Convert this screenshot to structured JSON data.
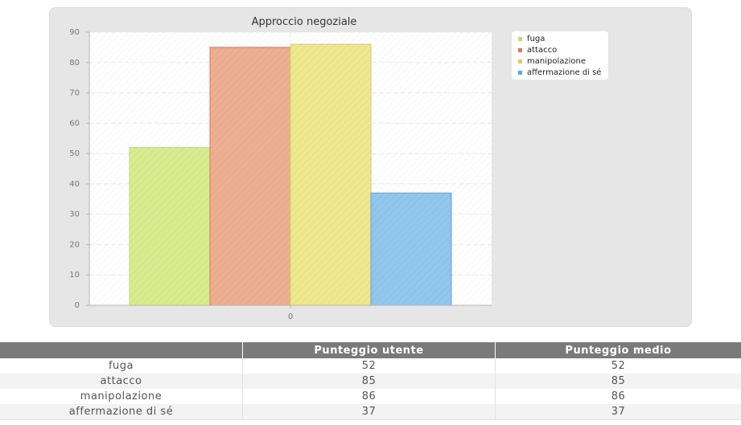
{
  "chart_data": {
    "type": "bar",
    "title": "Approccio negoziale",
    "categories": [
      "0"
    ],
    "series": [
      {
        "name": "fuga",
        "values": [
          52
        ],
        "color": "#d9eb8f",
        "stroke": "#c2d86a"
      },
      {
        "name": "attacco",
        "values": [
          85
        ],
        "color": "#edaf91",
        "stroke": "#d9795a"
      },
      {
        "name": "manipolazione",
        "values": [
          86
        ],
        "color": "#efe88e",
        "stroke": "#d9cf5e"
      },
      {
        "name": "affermazione di sé",
        "values": [
          37
        ],
        "color": "#92c6ec",
        "stroke": "#5ca6dc"
      }
    ],
    "yticks": [
      "0",
      "10",
      "20",
      "30",
      "40",
      "50",
      "60",
      "70",
      "80",
      "90"
    ],
    "ylim": [
      0,
      90
    ],
    "grid": true,
    "legend_position": "top-right"
  },
  "table": {
    "headers": [
      "",
      "Punteggio utente",
      "Punteggio medio"
    ],
    "rows": [
      {
        "label": "fuga",
        "user": "52",
        "avg": "52"
      },
      {
        "label": "attacco",
        "user": "85",
        "avg": "85"
      },
      {
        "label": "manipolazione",
        "user": "86",
        "avg": "86"
      },
      {
        "label": "affermazione di sé",
        "user": "37",
        "avg": "37"
      }
    ]
  }
}
